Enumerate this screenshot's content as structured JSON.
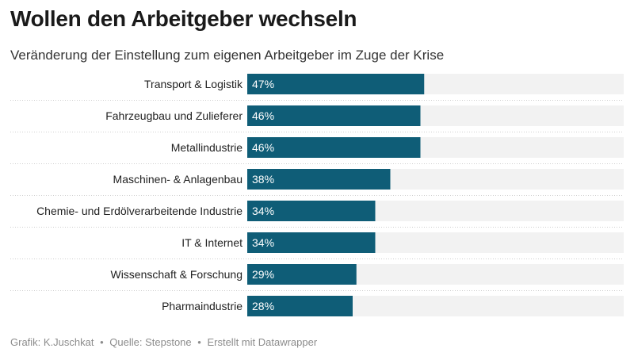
{
  "title": "Wollen den Arbeitgeber wechseln",
  "subtitle": "Veränderung der Einstellung zum eigenen Arbeitgeber im Zuge der Krise",
  "footer": {
    "grafik": "Grafik: K.Juschkat",
    "separator": "•",
    "quelle": "Quelle: Stepstone",
    "erstellt": "Erstellt mit Datawrapper"
  },
  "colors": {
    "bar": "#0f5d77",
    "background_bar": "#f2f2f2",
    "label_inside": "#ffffff",
    "category_text": "#222222",
    "divider": "#cfcfcf"
  },
  "chart_data": {
    "type": "bar",
    "orientation": "horizontal",
    "title": "Wollen den Arbeitgeber wechseln",
    "subtitle": "Veränderung der Einstellung zum eigenen Arbeitgeber im Zuge der Krise",
    "categories": [
      "Transport & Logistik",
      "Fahrzeugbau und Zulieferer",
      "Metallindustrie",
      "Maschinen- & Anlagenbau",
      "Chemie- und Erdölverarbeitende Industrie",
      "IT & Internet",
      "Wissenschaft & Forschung",
      "Pharmaindustrie"
    ],
    "values": [
      47,
      46,
      46,
      38,
      34,
      34,
      29,
      28
    ],
    "value_labels": [
      "47%",
      "46%",
      "46%",
      "38%",
      "34%",
      "34%",
      "29%",
      "28%"
    ],
    "unit": "%",
    "xlim": [
      0,
      100
    ],
    "grid": false,
    "legend": "none"
  }
}
